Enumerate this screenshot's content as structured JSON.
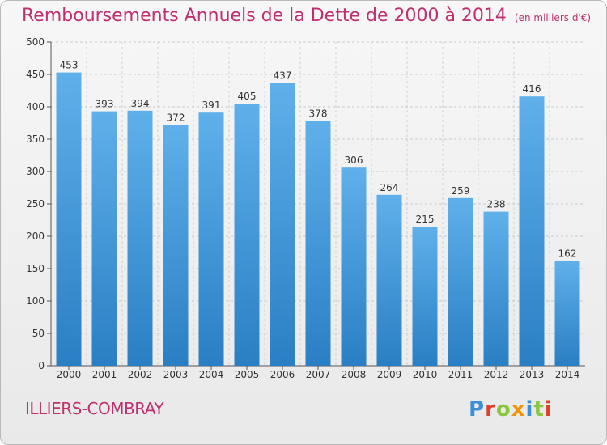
{
  "chart_data": {
    "type": "bar",
    "title": "Remboursements Annuels de la Dette de 2000 à 2014",
    "unit_label": "(en milliers d'€)",
    "categories": [
      "2000",
      "2001",
      "2002",
      "2003",
      "2004",
      "2005",
      "2006",
      "2007",
      "2008",
      "2009",
      "2010",
      "2011",
      "2012",
      "2013",
      "2014"
    ],
    "values": [
      453,
      393,
      394,
      372,
      391,
      405,
      437,
      378,
      306,
      264,
      215,
      259,
      238,
      416,
      162
    ],
    "ylim": [
      0,
      500
    ],
    "yticks": [
      0,
      50,
      100,
      150,
      200,
      250,
      300,
      350,
      400,
      450,
      500
    ],
    "grid": true,
    "bar_color": "#3a8fd6"
  },
  "footer": {
    "town": "ILLIERS-COMBRAY",
    "logo_text": "Proxiti",
    "logo_colors": [
      "#3a8fd6",
      "#e0402a",
      "#8cc63f",
      "#f29400",
      "#3a8fd6",
      "#8cc63f",
      "#e0402a"
    ]
  }
}
